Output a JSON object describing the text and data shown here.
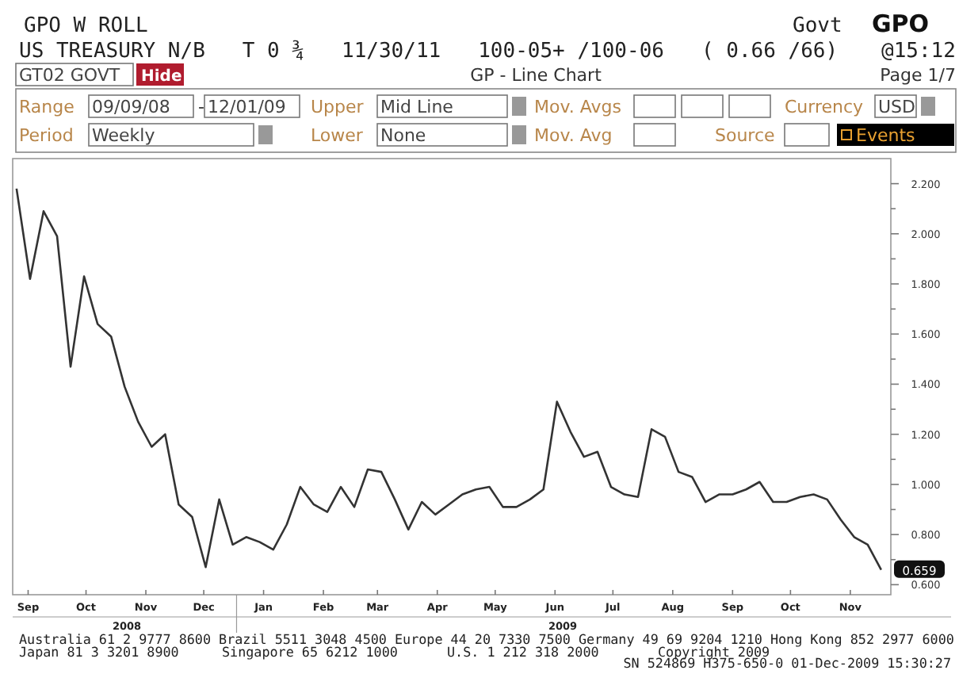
{
  "chart_data": {
    "type": "line",
    "title": "GP - Line Chart",
    "x": [
      "2008-09-09",
      "2008-09-16",
      "2008-09-23",
      "2008-09-30",
      "2008-10-07",
      "2008-10-14",
      "2008-10-21",
      "2008-10-28",
      "2008-11-04",
      "2008-11-11",
      "2008-11-18",
      "2008-11-25",
      "2008-12-02",
      "2008-12-09",
      "2008-12-16",
      "2008-12-23",
      "2008-12-30",
      "2009-01-06",
      "2009-01-13",
      "2009-01-20",
      "2009-01-27",
      "2009-02-03",
      "2009-02-10",
      "2009-02-17",
      "2009-02-24",
      "2009-03-03",
      "2009-03-10",
      "2009-03-17",
      "2009-03-24",
      "2009-03-31",
      "2009-04-07",
      "2009-04-14",
      "2009-04-21",
      "2009-04-28",
      "2009-05-05",
      "2009-05-12",
      "2009-05-19",
      "2009-05-26",
      "2009-06-02",
      "2009-06-09",
      "2009-06-16",
      "2009-06-23",
      "2009-06-30",
      "2009-07-07",
      "2009-07-14",
      "2009-07-21",
      "2009-07-28",
      "2009-08-04",
      "2009-08-11",
      "2009-08-18",
      "2009-08-25",
      "2009-09-01",
      "2009-09-08",
      "2009-09-15",
      "2009-09-22",
      "2009-09-29",
      "2009-10-06",
      "2009-10-13",
      "2009-10-20",
      "2009-10-27",
      "2009-11-03",
      "2009-11-10",
      "2009-11-17",
      "2009-11-24",
      "2009-12-01"
    ],
    "series": [
      {
        "color": "#333333",
        "values": [
          2.18,
          1.82,
          2.09,
          1.99,
          1.47,
          1.83,
          1.64,
          1.59,
          1.39,
          1.25,
          1.15,
          1.2,
          0.92,
          0.87,
          0.67,
          0.94,
          0.76,
          0.79,
          0.77,
          0.74,
          0.84,
          0.99,
          0.92,
          0.89,
          0.99,
          0.91,
          1.06,
          1.05,
          0.94,
          0.82,
          0.93,
          0.88,
          0.92,
          0.96,
          0.98,
          0.99,
          0.91,
          0.91,
          0.94,
          0.98,
          1.33,
          1.21,
          1.11,
          1.13,
          0.99,
          0.96,
          0.95,
          1.22,
          1.19,
          1.05,
          1.03,
          0.93,
          0.96,
          0.96,
          0.98,
          1.01,
          0.93,
          0.93,
          0.95,
          0.96,
          0.94,
          0.86,
          0.79,
          0.76,
          0.659
        ]
      }
    ],
    "xlim": [
      "2008-09-07",
      "2009-12-06"
    ],
    "xticks": [
      {
        "value": "2008-09-15",
        "label": "Sep"
      },
      {
        "value": "2008-10-15",
        "label": "Oct"
      },
      {
        "value": "2008-11-15",
        "label": "Nov"
      },
      {
        "value": "2008-12-15",
        "label": "Dec"
      },
      {
        "value": "2009-01-15",
        "label": "Jan"
      },
      {
        "value": "2009-02-15",
        "label": "Feb"
      },
      {
        "value": "2009-03-15",
        "label": "Mar"
      },
      {
        "value": "2009-04-15",
        "label": "Apr"
      },
      {
        "value": "2009-05-15",
        "label": "May"
      },
      {
        "value": "2009-06-15",
        "label": "Jun"
      },
      {
        "value": "2009-07-15",
        "label": "Jul"
      },
      {
        "value": "2009-08-15",
        "label": "Aug"
      },
      {
        "value": "2009-09-15",
        "label": "Sep"
      },
      {
        "value": "2009-10-15",
        "label": "Oct"
      },
      {
        "value": "2009-11-15",
        "label": "Nov"
      }
    ],
    "ylim": [
      0.56,
      2.3
    ],
    "yticks": [
      {
        "value": 0.6,
        "label": "0.600"
      },
      {
        "value": 0.7,
        "label": null
      },
      {
        "value": 0.8,
        "label": "0.800"
      },
      {
        "value": 0.9,
        "label": null
      },
      {
        "value": 1.0,
        "label": "1.000"
      },
      {
        "value": 1.1,
        "label": null
      },
      {
        "value": 1.2,
        "label": "1.200"
      },
      {
        "value": 1.3,
        "label": null
      },
      {
        "value": 1.4,
        "label": "1.400"
      },
      {
        "value": 1.5,
        "label": null
      },
      {
        "value": 1.6,
        "label": "1.600"
      },
      {
        "value": 1.7,
        "label": null
      },
      {
        "value": 1.8,
        "label": "1.800"
      },
      {
        "value": 1.9,
        "label": null
      },
      {
        "value": 2.0,
        "label": "2.000"
      },
      {
        "value": 2.1,
        "label": null
      },
      {
        "value": 2.2,
        "label": "2.200"
      }
    ],
    "grid": false,
    "marker": "none",
    "line_style": "solid",
    "annotations": [
      "GPO W ROLL",
      "Govt",
      "GPO",
      "US TREASURY N/B   T 0 ¾   11/30/11   100-05+ /100-06   ( 0.66 /66)",
      "@15:12",
      "GT02 GOVT",
      "Hide",
      "Page 1/7",
      "Range",
      "09/09/08",
      "-",
      "12/01/09",
      "Upper",
      "Mid Line",
      "Mov. Avgs",
      "Currency",
      "USD",
      "Period",
      "Weekly",
      "Lower",
      "None",
      "Mov. Avg",
      "Source",
      "Events",
      "2008",
      "2009",
      "Australia 61 2 9777 8600 Brazil 5511 3048 4500 Europe 44 20 7330 7500 Germany 49 69 9204 1210 Hong Kong 852 2977 6000",
      "Japan 81 3 3201 8900",
      "Singapore 65 6212 1000",
      "U.S. 1 212 318 2000",
      "Copyright 2009",
      "SN 524869 H375-650-0 01-Dec-2009 15:30:27",
      {
        "text": "0.659",
        "x": "2009-12-01",
        "y": 0.659
      }
    ]
  }
}
